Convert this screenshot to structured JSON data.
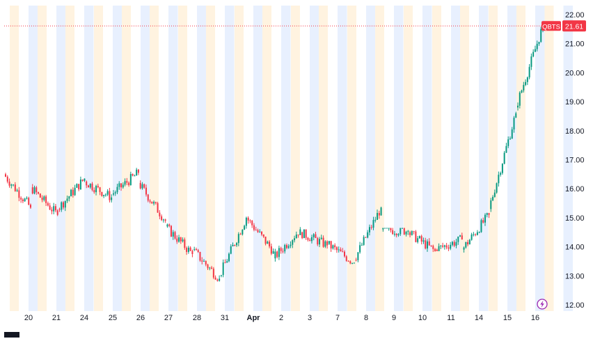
{
  "chart_data": {
    "type": "candlestick",
    "symbol": "QBTS",
    "last_price": 21.61,
    "last_price_label": "21.61",
    "ylim": [
      12.0,
      22.0
    ],
    "y_ticks": [
      "12.00",
      "13.00",
      "14.00",
      "15.00",
      "16.00",
      "17.00",
      "18.00",
      "19.00",
      "20.00",
      "21.00",
      "22.00"
    ],
    "x_ticks": [
      "20",
      "21",
      "24",
      "25",
      "26",
      "27",
      "28",
      "31",
      "Apr",
      "2",
      "3",
      "7",
      "8",
      "9",
      "10",
      "11",
      "14",
      "15",
      "16"
    ],
    "bold_ticks": [
      "Apr"
    ],
    "session_colors": {
      "pre": "#fff3e0",
      "post": "#e8f0fe"
    },
    "up_color": "#089981",
    "down_color": "#f23645",
    "price_line_color": "#f23645",
    "daily": [
      {
        "o": 16.5,
        "c": 15.35,
        "h": 16.55,
        "l": 15.3
      },
      {
        "o": 16.05,
        "c": 15.1,
        "h": 16.35,
        "l": 14.95
      },
      {
        "o": 15.3,
        "c": 16.35,
        "h": 16.45,
        "l": 15.2
      },
      {
        "o": 16.25,
        "c": 15.7,
        "h": 16.35,
        "l": 15.5
      },
      {
        "o": 15.8,
        "c": 16.55,
        "h": 16.75,
        "l": 15.75
      },
      {
        "o": 16.2,
        "c": 14.9,
        "h": 16.3,
        "l": 14.75
      },
      {
        "o": 14.7,
        "c": 13.75,
        "h": 14.8,
        "l": 13.6
      },
      {
        "o": 13.9,
        "c": 12.9,
        "h": 14.0,
        "l": 12.8
      },
      {
        "o": 13.0,
        "c": 15.0,
        "h": 15.1,
        "l": 12.95
      },
      {
        "o": 15.0,
        "c": 13.85,
        "h": 15.05,
        "l": 13.7
      },
      {
        "o": 13.6,
        "c": 14.6,
        "h": 14.7,
        "l": 13.05
      },
      {
        "o": 14.5,
        "c": 14.05,
        "h": 14.6,
        "l": 13.9
      },
      {
        "o": 14.1,
        "c": 13.45,
        "h": 14.2,
        "l": 13.4
      },
      {
        "o": 13.55,
        "c": 15.35,
        "h": 15.4,
        "l": 13.45
      },
      {
        "o": 14.6,
        "c": 14.55,
        "h": 14.65,
        "l": 13.95
      },
      {
        "o": 14.5,
        "c": 13.85,
        "h": 14.6,
        "l": 13.75
      },
      {
        "o": 13.9,
        "c": 14.25,
        "h": 14.8,
        "l": 13.85
      },
      {
        "o": 13.9,
        "c": 15.1,
        "h": 15.2,
        "l": 13.8
      },
      {
        "o": 15.3,
        "c": 18.6,
        "h": 18.8,
        "l": 15.2
      },
      {
        "o": 18.8,
        "c": 21.61,
        "h": 21.95,
        "l": 17.8
      }
    ]
  }
}
